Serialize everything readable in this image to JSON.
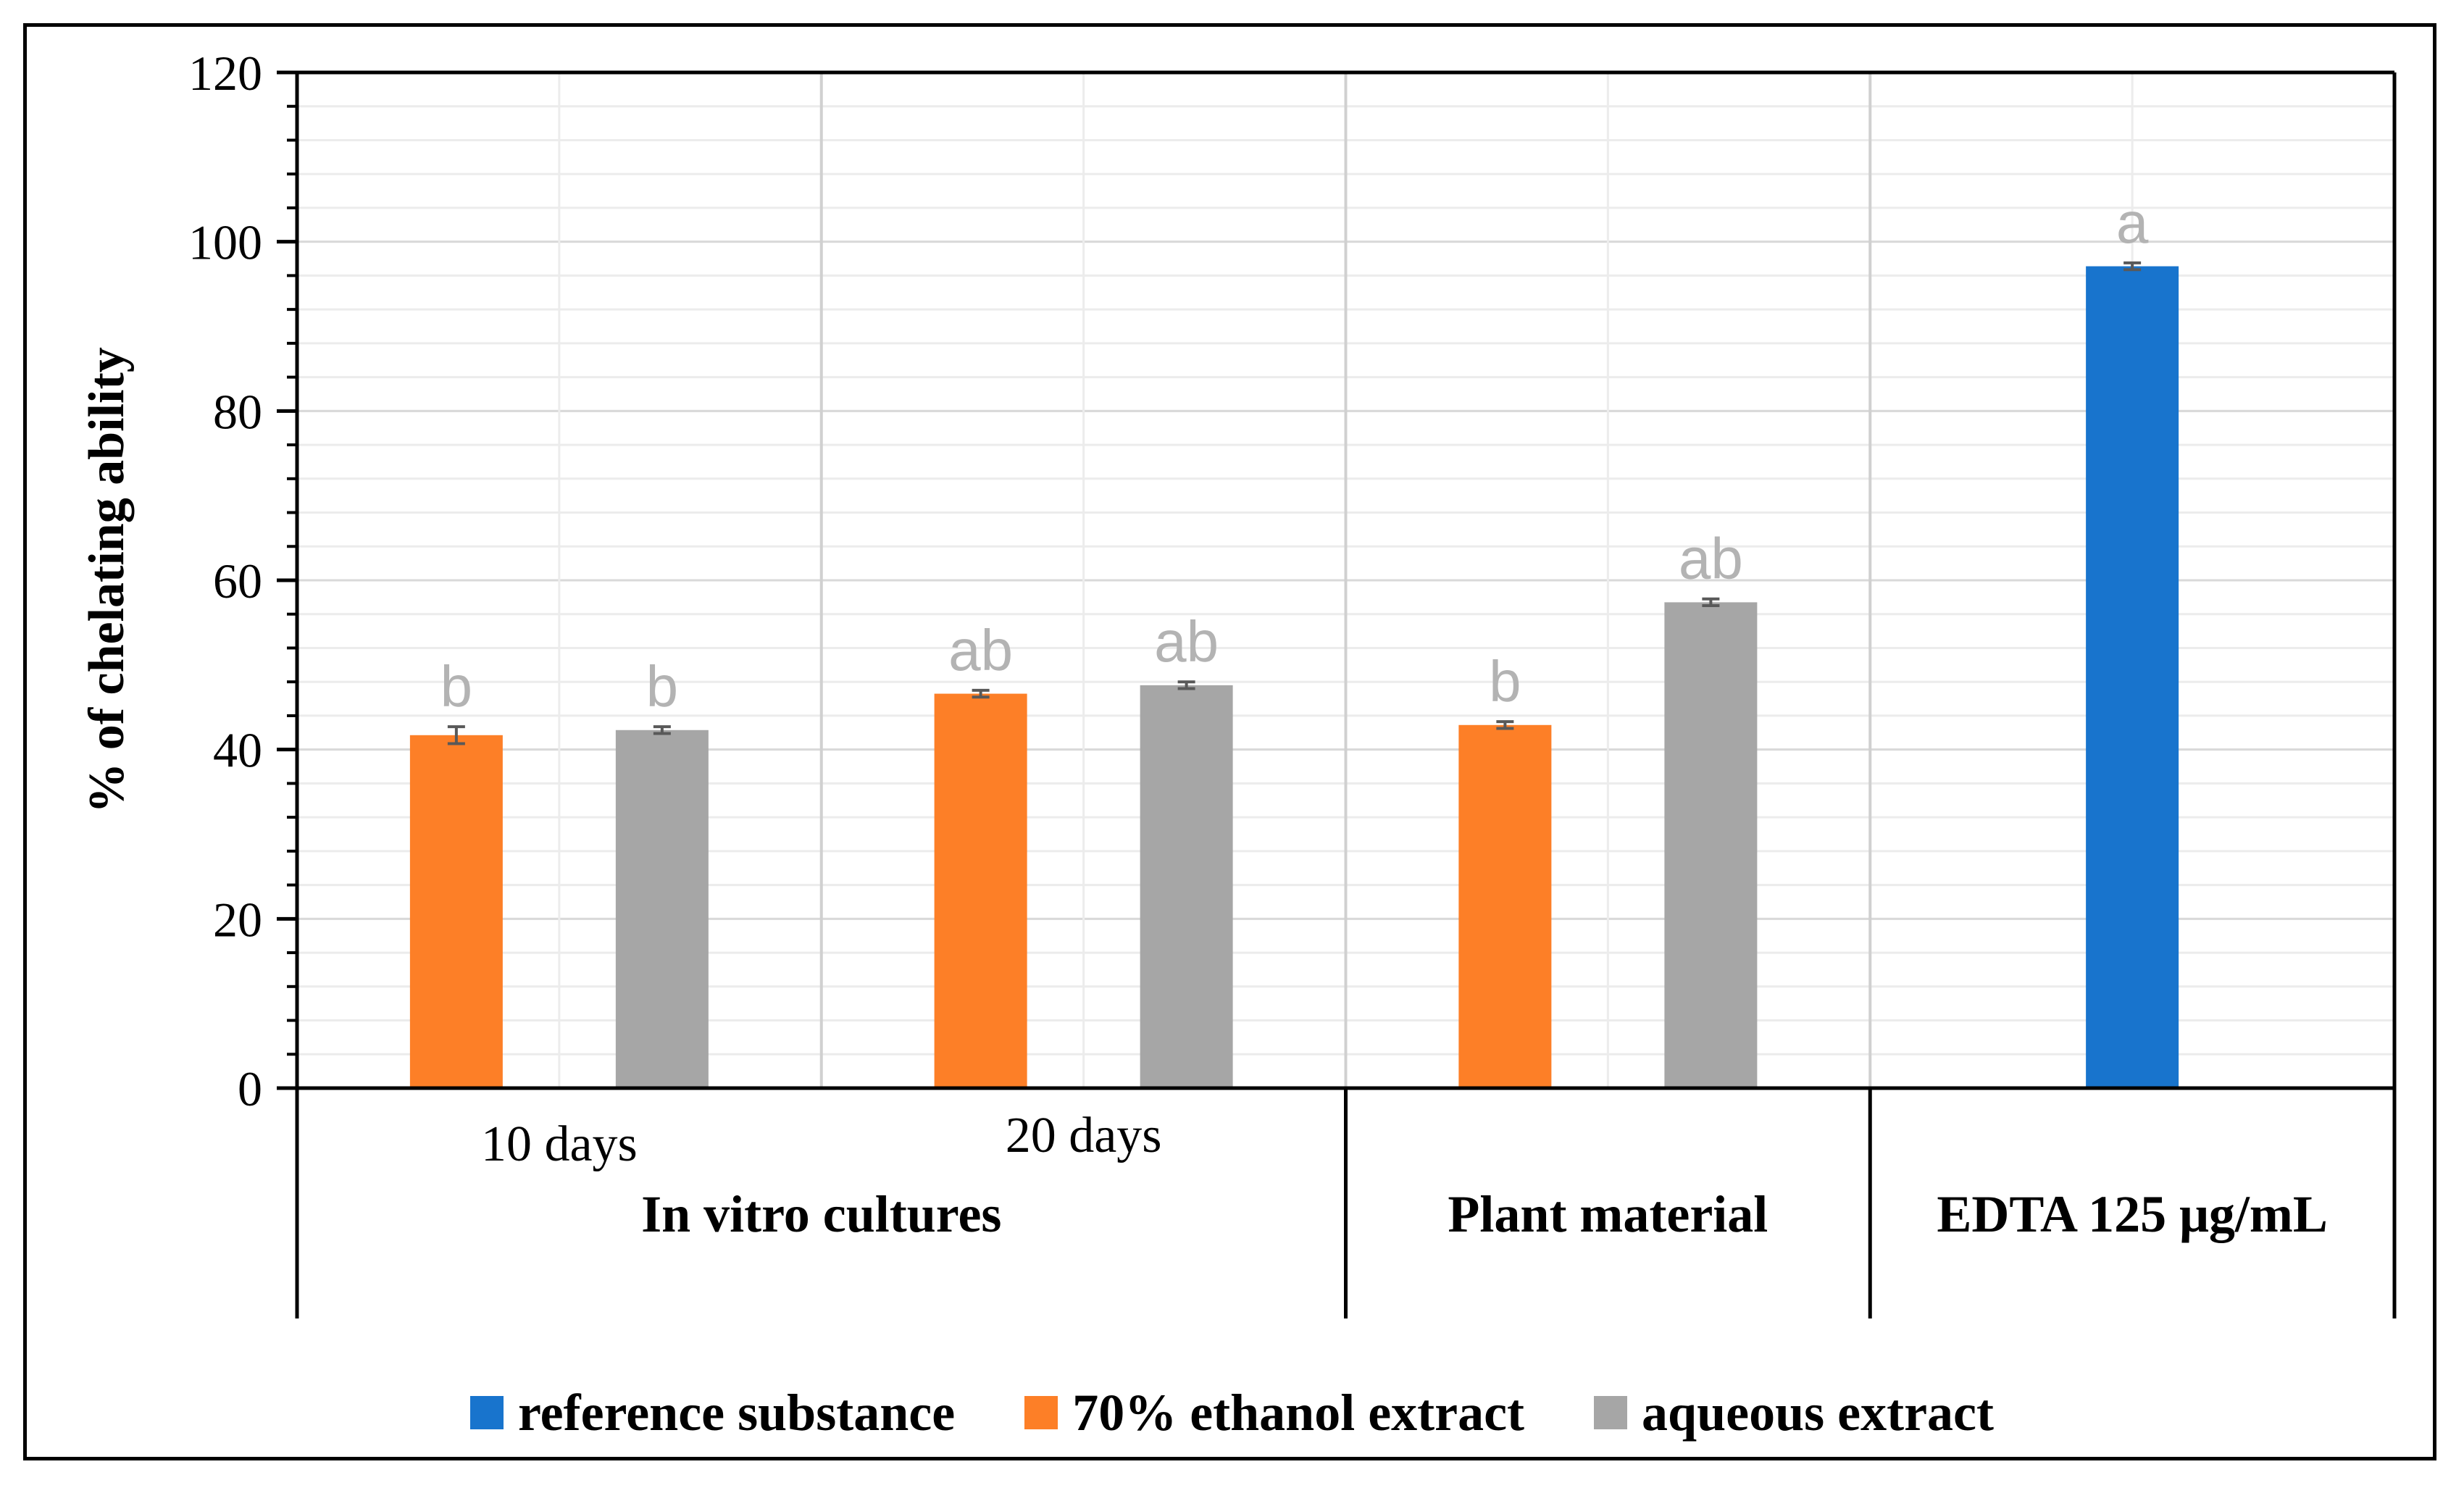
{
  "chart_data": {
    "type": "bar",
    "title": "",
    "ylabel": "% of chelating ability",
    "xlabel": "",
    "ylim": [
      0,
      120
    ],
    "yticks": [
      0,
      20,
      40,
      60,
      80,
      100,
      120
    ],
    "grid": true,
    "colors": {
      "reference substance": "#1874cd",
      "70% ethanol extract": "#fd7f27",
      "aqueous extract": "#a6a6a6"
    },
    "subcategories": [
      "10 days",
      "20 days",
      "",
      ""
    ],
    "groups": [
      {
        "label": "In vitro cultures",
        "span": [
          0,
          1
        ]
      },
      {
        "label": "Plant material",
        "span": [
          2,
          2
        ]
      },
      {
        "label": "EDTA 125 μg/mL",
        "span": [
          3,
          3
        ]
      }
    ],
    "bars": [
      {
        "category_index": 0,
        "series": "70% ethanol extract",
        "value": 41.7,
        "error": 1.0,
        "sig": "b"
      },
      {
        "category_index": 0,
        "series": "aqueous extract",
        "value": 42.3,
        "error": 0.4,
        "sig": "b"
      },
      {
        "category_index": 1,
        "series": "70% ethanol extract",
        "value": 46.6,
        "error": 0.4,
        "sig": "ab"
      },
      {
        "category_index": 1,
        "series": "aqueous extract",
        "value": 47.6,
        "error": 0.4,
        "sig": "ab"
      },
      {
        "category_index": 2,
        "series": "70% ethanol extract",
        "value": 42.9,
        "error": 0.4,
        "sig": "b"
      },
      {
        "category_index": 2,
        "series": "aqueous extract",
        "value": 57.4,
        "error": 0.4,
        "sig": "ab"
      },
      {
        "category_index": 3,
        "series": "reference substance",
        "value": 97.1,
        "error": 0.4,
        "sig": "a"
      }
    ],
    "legend": {
      "position": "bottom",
      "entries": [
        "reference substance",
        "70% ethanol extract",
        "aqueous extract"
      ]
    }
  }
}
